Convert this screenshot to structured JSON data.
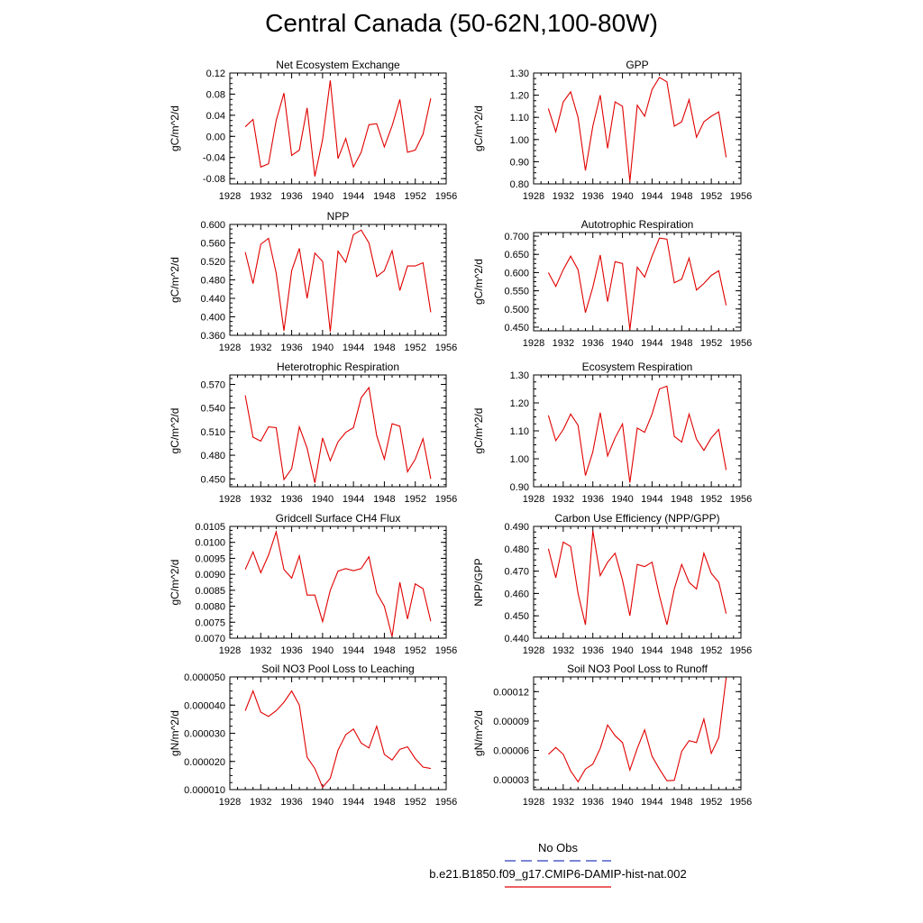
{
  "title": "Central Canada (50-62N,100-80W)",
  "legend": {
    "items": [
      {
        "label": "No Obs",
        "color": "#2a3fbf",
        "dashed": true
      },
      {
        "label": "b.e21.B1850.f09_g17.CMIP6-DAMIP-hist-nat.002",
        "color": "#e00000",
        "dashed": false
      }
    ]
  },
  "chart_data": [
    {
      "type": "line",
      "title": "Net Ecosystem Exchange",
      "xlabel": "",
      "ylabel": "gC/m^2/d",
      "xlim": [
        1928,
        1956
      ],
      "ylim": [
        -0.09,
        0.12
      ],
      "xticks": [
        1928,
        1932,
        1936,
        1940,
        1944,
        1948,
        1952,
        1956
      ],
      "yticks": [
        -0.08,
        -0.04,
        0.0,
        0.04,
        0.08,
        0.12
      ],
      "ytick_labels": [
        "-0.08",
        "-0.04",
        "0.00",
        "0.04",
        "0.08",
        "0.12"
      ],
      "x": [
        1930,
        1931,
        1932,
        1933,
        1934,
        1935,
        1936,
        1937,
        1938,
        1939,
        1940,
        1941,
        1942,
        1943,
        1944,
        1945,
        1946,
        1947,
        1948,
        1949,
        1950,
        1951,
        1952,
        1953,
        1954
      ],
      "series": [
        {
          "values": [
            0.018,
            0.032,
            -0.058,
            -0.052,
            0.03,
            0.082,
            -0.036,
            -0.026,
            0.054,
            -0.076,
            -0.006,
            0.106,
            -0.042,
            -0.004,
            -0.058,
            -0.03,
            0.022,
            0.024,
            -0.02,
            0.02,
            0.07,
            -0.03,
            -0.026,
            0.004,
            0.072
          ],
          "color": "#e00000"
        }
      ]
    },
    {
      "type": "line",
      "title": "GPP",
      "xlabel": "",
      "ylabel": "gC/m^2/d",
      "xlim": [
        1928,
        1956
      ],
      "ylim": [
        0.8,
        1.3
      ],
      "xticks": [
        1928,
        1932,
        1936,
        1940,
        1944,
        1948,
        1952,
        1956
      ],
      "yticks": [
        0.8,
        0.9,
        1.0,
        1.1,
        1.2,
        1.3
      ],
      "ytick_labels": [
        "0.80",
        "0.90",
        "1.00",
        "1.10",
        "1.20",
        "1.30"
      ],
      "x": [
        1930,
        1931,
        1932,
        1933,
        1934,
        1935,
        1936,
        1937,
        1938,
        1939,
        1940,
        1941,
        1942,
        1943,
        1944,
        1945,
        1946,
        1947,
        1948,
        1949,
        1950,
        1951,
        1952,
        1953,
        1954
      ],
      "series": [
        {
          "values": [
            1.14,
            1.035,
            1.17,
            1.215,
            1.1,
            0.86,
            1.06,
            1.2,
            0.96,
            1.17,
            1.15,
            0.81,
            1.155,
            1.105,
            1.225,
            1.28,
            1.26,
            1.06,
            1.08,
            1.18,
            1.01,
            1.08,
            1.105,
            1.125,
            0.92
          ],
          "color": "#e00000"
        }
      ]
    },
    {
      "type": "line",
      "title": "NPP",
      "xlabel": "",
      "ylabel": "gC/m^2/d",
      "xlim": [
        1928,
        1956
      ],
      "ylim": [
        0.36,
        0.6
      ],
      "xticks": [
        1928,
        1932,
        1936,
        1940,
        1944,
        1948,
        1952,
        1956
      ],
      "yticks": [
        0.36,
        0.4,
        0.44,
        0.48,
        0.52,
        0.56,
        0.6
      ],
      "ytick_labels": [
        "0.360",
        "0.400",
        "0.440",
        "0.480",
        "0.520",
        "0.560",
        "0.600"
      ],
      "x": [
        1930,
        1931,
        1932,
        1933,
        1934,
        1935,
        1936,
        1937,
        1938,
        1939,
        1940,
        1941,
        1942,
        1943,
        1944,
        1945,
        1946,
        1947,
        1948,
        1949,
        1950,
        1951,
        1952,
        1953,
        1954
      ],
      "series": [
        {
          "values": [
            0.54,
            0.472,
            0.557,
            0.57,
            0.495,
            0.37,
            0.5,
            0.548,
            0.44,
            0.538,
            0.52,
            0.368,
            0.542,
            0.518,
            0.578,
            0.588,
            0.56,
            0.487,
            0.5,
            0.543,
            0.457,
            0.51,
            0.51,
            0.517,
            0.41
          ],
          "color": "#e00000"
        }
      ]
    },
    {
      "type": "line",
      "title": "Autotrophic Respiration",
      "xlabel": "",
      "ylabel": "gC/m^2/d",
      "xlim": [
        1928,
        1956
      ],
      "ylim": [
        0.44,
        0.71
      ],
      "xticks": [
        1928,
        1932,
        1936,
        1940,
        1944,
        1948,
        1952,
        1956
      ],
      "yticks": [
        0.45,
        0.5,
        0.55,
        0.6,
        0.65,
        0.7
      ],
      "ytick_labels": [
        "0.450",
        "0.500",
        "0.550",
        "0.600",
        "0.650",
        "0.700"
      ],
      "x": [
        1930,
        1931,
        1932,
        1933,
        1934,
        1935,
        1936,
        1937,
        1938,
        1939,
        1940,
        1941,
        1942,
        1943,
        1944,
        1945,
        1946,
        1947,
        1948,
        1949,
        1950,
        1951,
        1952,
        1953,
        1954
      ],
      "series": [
        {
          "values": [
            0.6,
            0.562,
            0.608,
            0.645,
            0.608,
            0.49,
            0.56,
            0.648,
            0.52,
            0.63,
            0.625,
            0.443,
            0.615,
            0.588,
            0.645,
            0.695,
            0.692,
            0.572,
            0.582,
            0.64,
            0.552,
            0.57,
            0.592,
            0.605,
            0.51
          ],
          "color": "#e00000"
        }
      ]
    },
    {
      "type": "line",
      "title": "Heterotrophic Respiration",
      "xlabel": "",
      "ylabel": "gC/m^2/d",
      "xlim": [
        1928,
        1956
      ],
      "ylim": [
        0.44,
        0.582
      ],
      "xticks": [
        1928,
        1932,
        1936,
        1940,
        1944,
        1948,
        1952,
        1956
      ],
      "yticks": [
        0.45,
        0.48,
        0.51,
        0.54,
        0.57
      ],
      "ytick_labels": [
        "0.450",
        "0.480",
        "0.510",
        "0.540",
        "0.570"
      ],
      "x": [
        1930,
        1931,
        1932,
        1933,
        1934,
        1935,
        1936,
        1937,
        1938,
        1939,
        1940,
        1941,
        1942,
        1943,
        1944,
        1945,
        1946,
        1947,
        1948,
        1949,
        1950,
        1951,
        1952,
        1953,
        1954
      ],
      "series": [
        {
          "values": [
            0.556,
            0.503,
            0.498,
            0.516,
            0.515,
            0.449,
            0.463,
            0.516,
            0.489,
            0.445,
            0.502,
            0.473,
            0.497,
            0.509,
            0.515,
            0.553,
            0.566,
            0.505,
            0.475,
            0.52,
            0.517,
            0.459,
            0.475,
            0.501,
            0.45
          ],
          "color": "#e00000"
        }
      ]
    },
    {
      "type": "line",
      "title": "Ecosystem Respiration",
      "xlabel": "",
      "ylabel": "gC/m^2/d",
      "xlim": [
        1928,
        1956
      ],
      "ylim": [
        0.9,
        1.3
      ],
      "xticks": [
        1928,
        1932,
        1936,
        1940,
        1944,
        1948,
        1952,
        1956
      ],
      "yticks": [
        0.9,
        1.0,
        1.1,
        1.2,
        1.3
      ],
      "ytick_labels": [
        "0.90",
        "1.00",
        "1.10",
        "1.20",
        "1.30"
      ],
      "x": [
        1930,
        1931,
        1932,
        1933,
        1934,
        1935,
        1936,
        1937,
        1938,
        1939,
        1940,
        1941,
        1942,
        1943,
        1944,
        1945,
        1946,
        1947,
        1948,
        1949,
        1950,
        1951,
        1952,
        1953,
        1954
      ],
      "series": [
        {
          "values": [
            1.155,
            1.065,
            1.105,
            1.16,
            1.12,
            0.94,
            1.025,
            1.165,
            1.01,
            1.075,
            1.125,
            0.915,
            1.11,
            1.095,
            1.16,
            1.25,
            1.26,
            1.08,
            1.06,
            1.16,
            1.07,
            1.03,
            1.075,
            1.105,
            0.96
          ],
          "color": "#e00000"
        }
      ]
    },
    {
      "type": "line",
      "title": "Gridcell Surface CH4 Flux",
      "xlabel": "",
      "ylabel": "gC/m^2/d",
      "xlim": [
        1928,
        1956
      ],
      "ylim": [
        0.007,
        0.0105
      ],
      "xticks": [
        1928,
        1932,
        1936,
        1940,
        1944,
        1948,
        1952,
        1956
      ],
      "yticks": [
        0.007,
        0.0075,
        0.008,
        0.0085,
        0.009,
        0.0095,
        0.01,
        0.0105
      ],
      "ytick_labels": [
        "0.0070",
        "0.0075",
        "0.0080",
        "0.0085",
        "0.0090",
        "0.0095",
        "0.0100",
        "0.0105"
      ],
      "x": [
        1930,
        1931,
        1932,
        1933,
        1934,
        1935,
        1936,
        1937,
        1938,
        1939,
        1940,
        1941,
        1942,
        1943,
        1944,
        1945,
        1946,
        1947,
        1948,
        1949,
        1950,
        1951,
        1952,
        1953,
        1954
      ],
      "series": [
        {
          "values": [
            0.00915,
            0.0097,
            0.00905,
            0.0096,
            0.01033,
            0.00915,
            0.00888,
            0.00958,
            0.00835,
            0.00835,
            0.00752,
            0.0085,
            0.0091,
            0.00918,
            0.00911,
            0.00918,
            0.00955,
            0.00842,
            0.008,
            0.00705,
            0.00875,
            0.0076,
            0.0087,
            0.00855,
            0.00753
          ],
          "color": "#e00000"
        }
      ]
    },
    {
      "type": "line",
      "title": "Carbon Use Efficiency (NPP/GPP)",
      "xlabel": "",
      "ylabel": "NPP/GPP",
      "xlim": [
        1928,
        1956
      ],
      "ylim": [
        0.44,
        0.49
      ],
      "xticks": [
        1928,
        1932,
        1936,
        1940,
        1944,
        1948,
        1952,
        1956
      ],
      "yticks": [
        0.44,
        0.45,
        0.46,
        0.47,
        0.48,
        0.49
      ],
      "ytick_labels": [
        "0.440",
        "0.450",
        "0.460",
        "0.470",
        "0.480",
        "0.490"
      ],
      "x": [
        1930,
        1931,
        1932,
        1933,
        1934,
        1935,
        1936,
        1937,
        1938,
        1939,
        1940,
        1941,
        1942,
        1943,
        1944,
        1945,
        1946,
        1947,
        1948,
        1949,
        1950,
        1951,
        1952,
        1953,
        1954
      ],
      "series": [
        {
          "values": [
            0.48,
            0.467,
            0.483,
            0.481,
            0.46,
            0.446,
            0.488,
            0.468,
            0.474,
            0.478,
            0.466,
            0.45,
            0.473,
            0.472,
            0.474,
            0.459,
            0.446,
            0.462,
            0.473,
            0.465,
            0.462,
            0.478,
            0.469,
            0.465,
            0.451
          ],
          "color": "#e00000"
        }
      ]
    },
    {
      "type": "line",
      "title": "Soil NO3 Pool Loss to Leaching",
      "xlabel": "",
      "ylabel": "gN/m^2/d",
      "xlim": [
        1928,
        1956
      ],
      "ylim": [
        1e-05,
        5e-05
      ],
      "xticks": [
        1928,
        1932,
        1936,
        1940,
        1944,
        1948,
        1952,
        1956
      ],
      "yticks": [
        1e-05,
        2e-05,
        3e-05,
        4e-05,
        5e-05
      ],
      "ytick_labels": [
        "0.000010",
        "0.000020",
        "0.000030",
        "0.000040",
        "0.000050"
      ],
      "x": [
        1930,
        1931,
        1932,
        1933,
        1934,
        1935,
        1936,
        1937,
        1938,
        1939,
        1940,
        1941,
        1942,
        1943,
        1944,
        1945,
        1946,
        1947,
        1948,
        1949,
        1950,
        1951,
        1952,
        1953,
        1954
      ],
      "series": [
        {
          "values": [
            3.8e-05,
            4.5e-05,
            3.75e-05,
            3.6e-05,
            3.8e-05,
            4.1e-05,
            4.5e-05,
            4e-05,
            2.15e-05,
            1.75e-05,
            1.08e-05,
            1.4e-05,
            2.4e-05,
            2.95e-05,
            3.15e-05,
            2.65e-05,
            2.48e-05,
            3.25e-05,
            2.25e-05,
            2.05e-05,
            2.43e-05,
            2.52e-05,
            2.1e-05,
            1.8e-05,
            1.75e-05
          ],
          "color": "#e00000"
        }
      ]
    },
    {
      "type": "line",
      "title": "Soil NO3 Pool Loss to Runoff",
      "xlabel": "",
      "ylabel": "gN/m^2/d",
      "xlim": [
        1928,
        1956
      ],
      "ylim": [
        2e-05,
        0.000135
      ],
      "xticks": [
        1928,
        1932,
        1936,
        1940,
        1944,
        1948,
        1952,
        1956
      ],
      "yticks": [
        3e-05,
        6e-05,
        9e-05,
        0.00012
      ],
      "ytick_labels": [
        "0.00003",
        "0.00006",
        "0.00009",
        "0.00012"
      ],
      "x": [
        1930,
        1931,
        1932,
        1933,
        1934,
        1935,
        1936,
        1937,
        1938,
        1939,
        1940,
        1941,
        1942,
        1943,
        1944,
        1945,
        1946,
        1947,
        1948,
        1949,
        1950,
        1951,
        1952,
        1953,
        1954
      ],
      "series": [
        {
          "values": [
            5.6e-05,
            6.3e-05,
            5.6e-05,
            3.9e-05,
            2.8e-05,
            4.1e-05,
            4.6e-05,
            6.2e-05,
            8.6e-05,
            7.5e-05,
            6.8e-05,
            4e-05,
            6.2e-05,
            8.1e-05,
            5.4e-05,
            4.1e-05,
            2.9e-05,
            2.95e-05,
            5.9e-05,
            7e-05,
            6.8e-05,
            9.2e-05,
            5.7e-05,
            7.3e-05,
            0.000134
          ],
          "color": "#e00000"
        }
      ]
    }
  ]
}
